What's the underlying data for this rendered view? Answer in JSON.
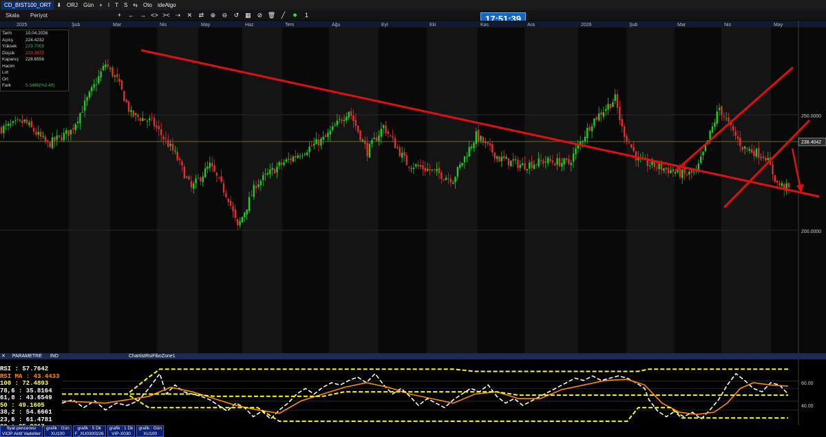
{
  "toolbar": {
    "symbol": "CD_BIST100_ORT",
    "items": [
      "ORJ",
      "Gün",
      "I",
      "T",
      "S",
      "Oto",
      "ideAlgo"
    ],
    "counter": "1"
  },
  "menu": {
    "scale": "Skala",
    "period": "Periyot"
  },
  "clock": "17:51:39",
  "info": {
    "rows": [
      {
        "label": "Tarih",
        "value": "10.04.2026",
        "color": "#dddddd"
      },
      {
        "label": "Açılış",
        "value": "224.4232",
        "color": "#dddddd"
      },
      {
        "label": "Yüksek",
        "value": "229.7009",
        "color": "#4caf50"
      },
      {
        "label": "Düşük",
        "value": "223.3572",
        "color": "#ef5350"
      },
      {
        "label": "Kapanış",
        "value": "228.6556",
        "color": "#dddddd"
      },
      {
        "label": "Hacim",
        "value": "",
        "color": "#dddddd"
      },
      {
        "label": "Lot",
        "value": "",
        "color": "#dddddd"
      },
      {
        "label": "Ort",
        "value": "",
        "color": "#dddddd"
      },
      {
        "label": "Fark",
        "value": "5.3498(%2.40)",
        "color": "#4caf50"
      }
    ]
  },
  "panel": {
    "param": "PARAMETRE",
    "ind": "IND",
    "indicator_name": "ChartistRsiFiboZone1"
  },
  "rsi_legend": [
    {
      "text": "RSI : 57.7642",
      "color": "#ffffff"
    },
    {
      "text": "RSI MA : 43.4433",
      "color": "#ff8c00"
    },
    {
      "text": "100 : 72.4893",
      "color": "#ffff66"
    },
    {
      "text": "78,6 : 35.8164",
      "color": "#ffffff"
    },
    {
      "text": "61,8 : 43.6549",
      "color": "#ffffff"
    },
    {
      "text": "50 : 49.1605",
      "color": "#ffff66"
    },
    {
      "text": "38,2 : 54.6661",
      "color": "#ffffff"
    },
    {
      "text": "23,6 : 61.4781",
      "color": "#ffffff"
    },
    {
      "text": "00 : 25.8317",
      "color": "#ffff66"
    }
  ],
  "tabs": [
    {
      "line1": "fiyat penceresi",
      "line2": "VIOP Aktif Vadeliler"
    },
    {
      "line1": "grafik : Gün",
      "line2": "XU100"
    },
    {
      "line1": "grafik : 5 Dk",
      "line2": "F_XU0300226"
    },
    {
      "line1": "grafik : 1 Dk",
      "line2": "VIP-X030"
    },
    {
      "line1": "grafik : Gün",
      "line2": "XU100"
    }
  ],
  "chart_data": [
    {
      "type": "candlestick",
      "months": [
        "2025",
        "Şub",
        "Mar",
        "Nis",
        "May",
        "Haz",
        "Tem",
        "Ağu",
        "Eyl",
        "Eki",
        "Kas",
        "Ara",
        "2026",
        "Şub",
        "Mar",
        "Nis",
        "May"
      ],
      "y_ticks": [
        "250.0000",
        "200.0000"
      ],
      "y_range": [
        175,
        290
      ],
      "last_price_label": "238.4042",
      "close_path": [
        {
          "x": 0,
          "y": 244
        },
        {
          "x": 10,
          "y": 247
        },
        {
          "x": 20,
          "y": 237
        },
        {
          "x": 30,
          "y": 243
        },
        {
          "x": 45,
          "y": 272
        },
        {
          "x": 50,
          "y": 265
        },
        {
          "x": 56,
          "y": 250
        },
        {
          "x": 65,
          "y": 247
        },
        {
          "x": 75,
          "y": 233
        },
        {
          "x": 82,
          "y": 218
        },
        {
          "x": 90,
          "y": 228
        },
        {
          "x": 98,
          "y": 214
        },
        {
          "x": 102,
          "y": 201
        },
        {
          "x": 110,
          "y": 220
        },
        {
          "x": 120,
          "y": 228
        },
        {
          "x": 130,
          "y": 234
        },
        {
          "x": 140,
          "y": 240
        },
        {
          "x": 150,
          "y": 252
        },
        {
          "x": 158,
          "y": 234
        },
        {
          "x": 165,
          "y": 245
        },
        {
          "x": 175,
          "y": 229
        },
        {
          "x": 185,
          "y": 226
        },
        {
          "x": 195,
          "y": 222
        },
        {
          "x": 205,
          "y": 241
        },
        {
          "x": 215,
          "y": 231
        },
        {
          "x": 225,
          "y": 228
        },
        {
          "x": 235,
          "y": 230
        },
        {
          "x": 245,
          "y": 229
        },
        {
          "x": 255,
          "y": 247
        },
        {
          "x": 265,
          "y": 257
        },
        {
          "x": 268,
          "y": 244
        },
        {
          "x": 275,
          "y": 230
        },
        {
          "x": 285,
          "y": 227
        },
        {
          "x": 295,
          "y": 224
        },
        {
          "x": 300,
          "y": 225
        },
        {
          "x": 303,
          "y": 233
        },
        {
          "x": 310,
          "y": 253
        },
        {
          "x": 315,
          "y": 244
        },
        {
          "x": 320,
          "y": 236
        },
        {
          "x": 330,
          "y": 232
        },
        {
          "x": 335,
          "y": 220
        },
        {
          "x": 340,
          "y": 218
        }
      ]
    },
    {
      "type": "line",
      "panel": "RSI",
      "y_ticks": [
        "60.00",
        "40.00"
      ],
      "y_range": [
        25,
        75
      ],
      "series": [
        {
          "name": "RSI",
          "color": "#ffffff",
          "values": [
            [
              0,
              42
            ],
            [
              5,
              45
            ],
            [
              10,
              38
            ],
            [
              15,
              44
            ],
            [
              20,
              36
            ],
            [
              25,
              42
            ],
            [
              30,
              40
            ],
            [
              35,
              44
            ],
            [
              40,
              55
            ],
            [
              45,
              68
            ],
            [
              48,
              50
            ],
            [
              52,
              58
            ],
            [
              56,
              52
            ],
            [
              60,
              50
            ],
            [
              64,
              48
            ],
            [
              68,
              45
            ],
            [
              72,
              40
            ],
            [
              76,
              35
            ],
            [
              80,
              42
            ],
            [
              84,
              38
            ],
            [
              88,
              30
            ],
            [
              92,
              35
            ],
            [
              96,
              28
            ],
            [
              100,
              36
            ],
            [
              104,
              42
            ],
            [
              108,
              50
            ],
            [
              112,
              55
            ],
            [
              116,
              50
            ],
            [
              120,
              56
            ],
            [
              124,
              60
            ],
            [
              128,
              58
            ],
            [
              132,
              62
            ],
            [
              136,
              65
            ],
            [
              140,
              60
            ],
            [
              144,
              68
            ],
            [
              148,
              58
            ],
            [
              152,
              50
            ],
            [
              156,
              55
            ],
            [
              160,
              48
            ],
            [
              164,
              40
            ],
            [
              168,
              46
            ],
            [
              172,
              42
            ],
            [
              176,
              38
            ],
            [
              180,
              45
            ],
            [
              184,
              50
            ],
            [
              188,
              55
            ],
            [
              192,
              52
            ],
            [
              196,
              58
            ],
            [
              200,
              48
            ],
            [
              204,
              42
            ],
            [
              208,
              46
            ],
            [
              212,
              40
            ],
            [
              216,
              44
            ],
            [
              220,
              48
            ],
            [
              224,
              52
            ],
            [
              228,
              56
            ],
            [
              232,
              60
            ],
            [
              236,
              64
            ],
            [
              240,
              62
            ],
            [
              244,
              66
            ],
            [
              248,
              62
            ],
            [
              252,
              64
            ],
            [
              256,
              66
            ],
            [
              260,
              64
            ],
            [
              264,
              60
            ],
            [
              268,
              55
            ],
            [
              270,
              45
            ],
            [
              274,
              35
            ],
            [
              278,
              30
            ],
            [
              282,
              35
            ],
            [
              286,
              30
            ],
            [
              290,
              34
            ],
            [
              294,
              28
            ],
            [
              298,
              36
            ],
            [
              302,
              45
            ],
            [
              306,
              58
            ],
            [
              310,
              68
            ],
            [
              314,
              62
            ],
            [
              318,
              55
            ],
            [
              322,
              52
            ],
            [
              326,
              60
            ],
            [
              330,
              58
            ],
            [
              334,
              50
            ]
          ]
        },
        {
          "name": "RSI MA",
          "color": "#ff8c00",
          "values": [
            [
              0,
              44
            ],
            [
              20,
              42
            ],
            [
              40,
              48
            ],
            [
              50,
              56
            ],
            [
              60,
              52
            ],
            [
              70,
              46
            ],
            [
              80,
              40
            ],
            [
              90,
              36
            ],
            [
              100,
              33
            ],
            [
              110,
              44
            ],
            [
              120,
              50
            ],
            [
              130,
              56
            ],
            [
              140,
              60
            ],
            [
              150,
              56
            ],
            [
              160,
              50
            ],
            [
              170,
              46
            ],
            [
              180,
              42
            ],
            [
              190,
              50
            ],
            [
              200,
              52
            ],
            [
              210,
              46
            ],
            [
              220,
              46
            ],
            [
              230,
              54
            ],
            [
              240,
              58
            ],
            [
              250,
              62
            ],
            [
              260,
              63
            ],
            [
              268,
              58
            ],
            [
              276,
              42
            ],
            [
              284,
              34
            ],
            [
              292,
              32
            ],
            [
              300,
              34
            ],
            [
              306,
              42
            ],
            [
              312,
              55
            ],
            [
              318,
              60
            ],
            [
              326,
              58
            ],
            [
              334,
              57
            ]
          ]
        },
        {
          "name": "100",
          "color": "#ffff00",
          "values": [
            [
              0,
              50
            ],
            [
              30,
              50
            ],
            [
              40,
              65
            ],
            [
              45,
              72
            ],
            [
              100,
              72
            ],
            [
              110,
              72
            ],
            [
              180,
              72
            ],
            [
              190,
              70
            ],
            [
              265,
              70
            ],
            [
              270,
              72
            ],
            [
              300,
              72
            ],
            [
              310,
              72
            ],
            [
              334,
              72
            ]
          ]
        },
        {
          "name": "00",
          "color": "#ffff00",
          "values": [
            [
              0,
              50
            ],
            [
              30,
              50
            ],
            [
              40,
              38
            ],
            [
              90,
              38
            ],
            [
              100,
              26
            ],
            [
              210,
              26
            ],
            [
              220,
              26
            ],
            [
              260,
              26
            ],
            [
              265,
              38
            ],
            [
              280,
              38
            ],
            [
              285,
              29
            ],
            [
              334,
              29
            ]
          ]
        },
        {
          "name": "50",
          "color": "#ffff00",
          "values": [
            [
              0,
              50
            ],
            [
              60,
              50
            ],
            [
              70,
              48
            ],
            [
              120,
              48
            ],
            [
              130,
              52
            ],
            [
              200,
              52
            ],
            [
              210,
              49
            ],
            [
              334,
              49
            ]
          ]
        }
      ]
    }
  ]
}
